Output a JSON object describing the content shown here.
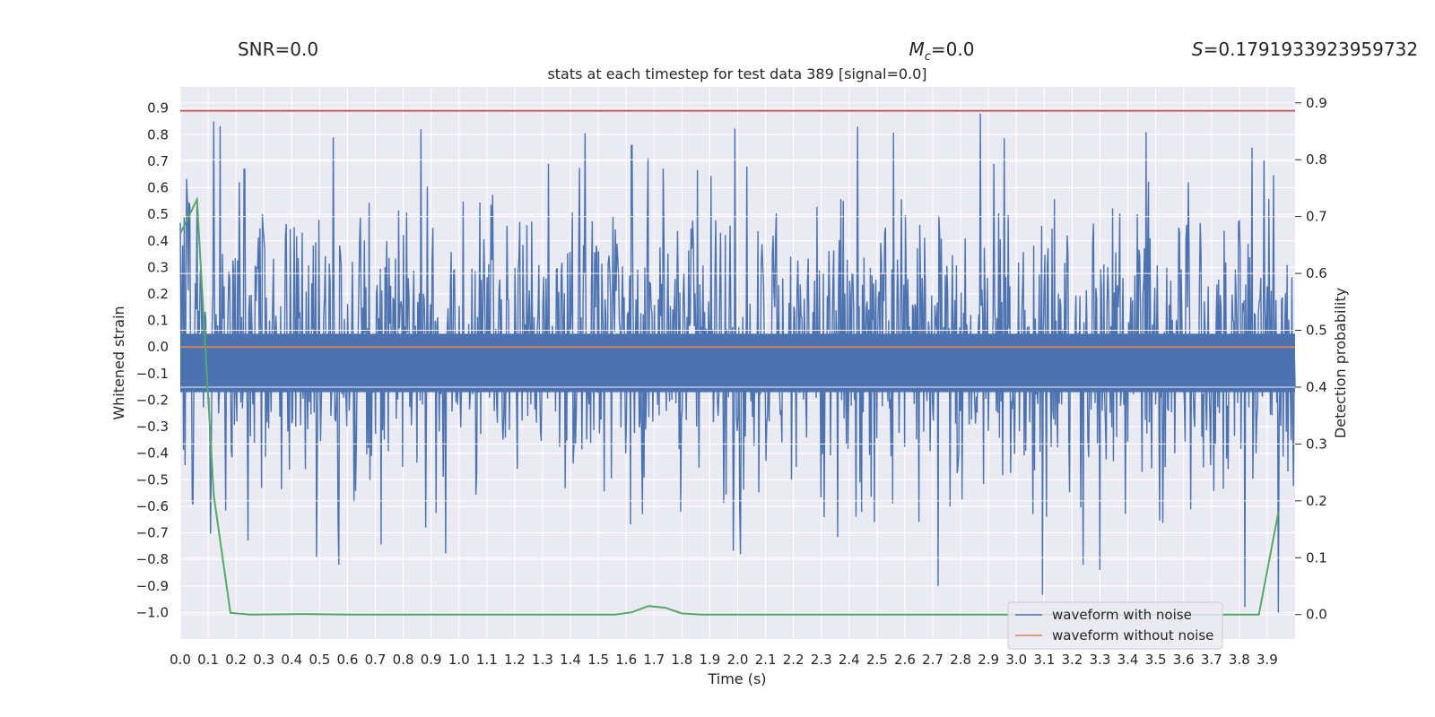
{
  "header": {
    "snr": "SNR=0.0",
    "mc_symbol": "M",
    "mc_sub": "c",
    "mc_value": "=0.0",
    "s_symbol": "S",
    "s_value": "=0.1791933923959732"
  },
  "chart_data": {
    "type": "line",
    "title": "stats at each timestep for test data 389 [signal=0.0]",
    "xlabel": "Time (s)",
    "ylabel_left": "Whitened strain",
    "ylabel_right": "Detection probability",
    "xlim": [
      0.0,
      4.0
    ],
    "ylim_left": [
      -1.1,
      0.98
    ],
    "ylim_right": [
      -0.043,
      0.928
    ],
    "grid": true,
    "legend_position": "lower-right",
    "x_ticks": [
      0.0,
      0.1,
      0.2,
      0.3,
      0.4,
      0.5,
      0.6,
      0.7,
      0.8,
      0.9,
      1.0,
      1.1,
      1.2,
      1.3,
      1.4,
      1.5,
      1.6,
      1.7,
      1.8,
      1.9,
      2.0,
      2.1,
      2.2,
      2.3,
      2.4,
      2.5,
      2.6,
      2.7,
      2.8,
      2.9,
      3.0,
      3.1,
      3.2,
      3.3,
      3.4,
      3.5,
      3.6,
      3.7,
      3.8,
      3.9
    ],
    "x_tick_labels": [
      "0.0",
      "0.1",
      "0.2",
      "0.3",
      "0.4",
      "0.5",
      "0.6",
      "0.7",
      "0.8",
      "0.9",
      "1.0",
      "1.1",
      "1.2",
      "1.3",
      "1.4",
      "1.5",
      "1.6",
      "1.7",
      "1.8",
      "1.9",
      "2.0",
      "2.1",
      "2.2",
      "2.3",
      "2.4",
      "2.5",
      "2.6",
      "2.7",
      "2.8",
      "2.9",
      "3.0",
      "3.1",
      "3.2",
      "3.3",
      "3.4",
      "3.5",
      "3.6",
      "3.7",
      "3.8",
      "3.9"
    ],
    "y_left_ticks": [
      0.9,
      0.8,
      0.7,
      0.6,
      0.5,
      0.4,
      0.3,
      0.2,
      0.1,
      0.0,
      -0.1,
      -0.2,
      -0.3,
      -0.4,
      -0.5,
      -0.6,
      -0.7,
      -0.8,
      -0.9,
      -1.0
    ],
    "y_left_tick_labels": [
      "0.9",
      "0.8",
      "0.7",
      "0.6",
      "0.5",
      "0.4",
      "0.3",
      "0.2",
      "0.1",
      "0.0",
      "−0.1",
      "−0.2",
      "−0.3",
      "−0.4",
      "−0.5",
      "−0.6",
      "−0.7",
      "−0.8",
      "−0.9",
      "−1.0"
    ],
    "y_right_ticks": [
      0.9,
      0.8,
      0.7,
      0.6,
      0.5,
      0.4,
      0.3,
      0.2,
      0.1,
      0.0
    ],
    "y_right_tick_labels": [
      "0.9",
      "0.8",
      "0.7",
      "0.6",
      "0.5",
      "0.4",
      "0.3",
      "0.2",
      "0.1",
      "0.0"
    ],
    "series": [
      {
        "name": "waveform with noise",
        "color": "#4c72b0",
        "axis": "left",
        "style": "dense-noise",
        "band": [
          -0.17,
          0.05
        ],
        "num_points": 1400,
        "peaks": [
          {
            "x": 0.12,
            "y": 0.85
          },
          {
            "x": 0.23,
            "y": 0.67
          },
          {
            "x": 0.55,
            "y": 0.79
          },
          {
            "x": 2.43,
            "y": 0.83
          },
          {
            "x": 2.87,
            "y": 0.88
          },
          {
            "x": 2.92,
            "y": 0.69
          },
          {
            "x": 1.62,
            "y": 0.76
          },
          {
            "x": 0.57,
            "y": -0.82
          },
          {
            "x": 0.49,
            "y": -0.79
          },
          {
            "x": 2.72,
            "y": -0.9
          },
          {
            "x": 3.94,
            "y": -1.0
          },
          {
            "x": 3.3,
            "y": -0.84
          },
          {
            "x": 3.24,
            "y": -0.82
          },
          {
            "x": 2.01,
            "y": -0.78
          }
        ]
      },
      {
        "name": "waveform without noise",
        "color": "#dd8452",
        "axis": "left",
        "x": [
          0.0,
          4.0
        ],
        "y": [
          0.0,
          0.0
        ]
      },
      {
        "name": "detection probability",
        "color": "#55a868",
        "axis": "right",
        "in_legend": false,
        "x": [
          0.0,
          0.06,
          0.12,
          0.18,
          0.25,
          0.44,
          0.62,
          1.0,
          1.5,
          1.56,
          1.62,
          1.68,
          1.74,
          1.8,
          1.87,
          2.5,
          3.0,
          3.5,
          3.87,
          3.94
        ],
        "y": [
          0.67,
          0.73,
          0.21,
          0.003,
          0.0,
          0.001,
          0.0,
          0.0,
          0.0,
          0.0,
          0.004,
          0.015,
          0.012,
          0.002,
          0.0,
          0.0,
          0.0,
          0.0,
          0.0,
          0.18
        ]
      }
    ],
    "threshold": {
      "axis": "left",
      "y": 0.89,
      "color": "#c44e52"
    },
    "legend": [
      "waveform with noise",
      "waveform without noise"
    ]
  }
}
